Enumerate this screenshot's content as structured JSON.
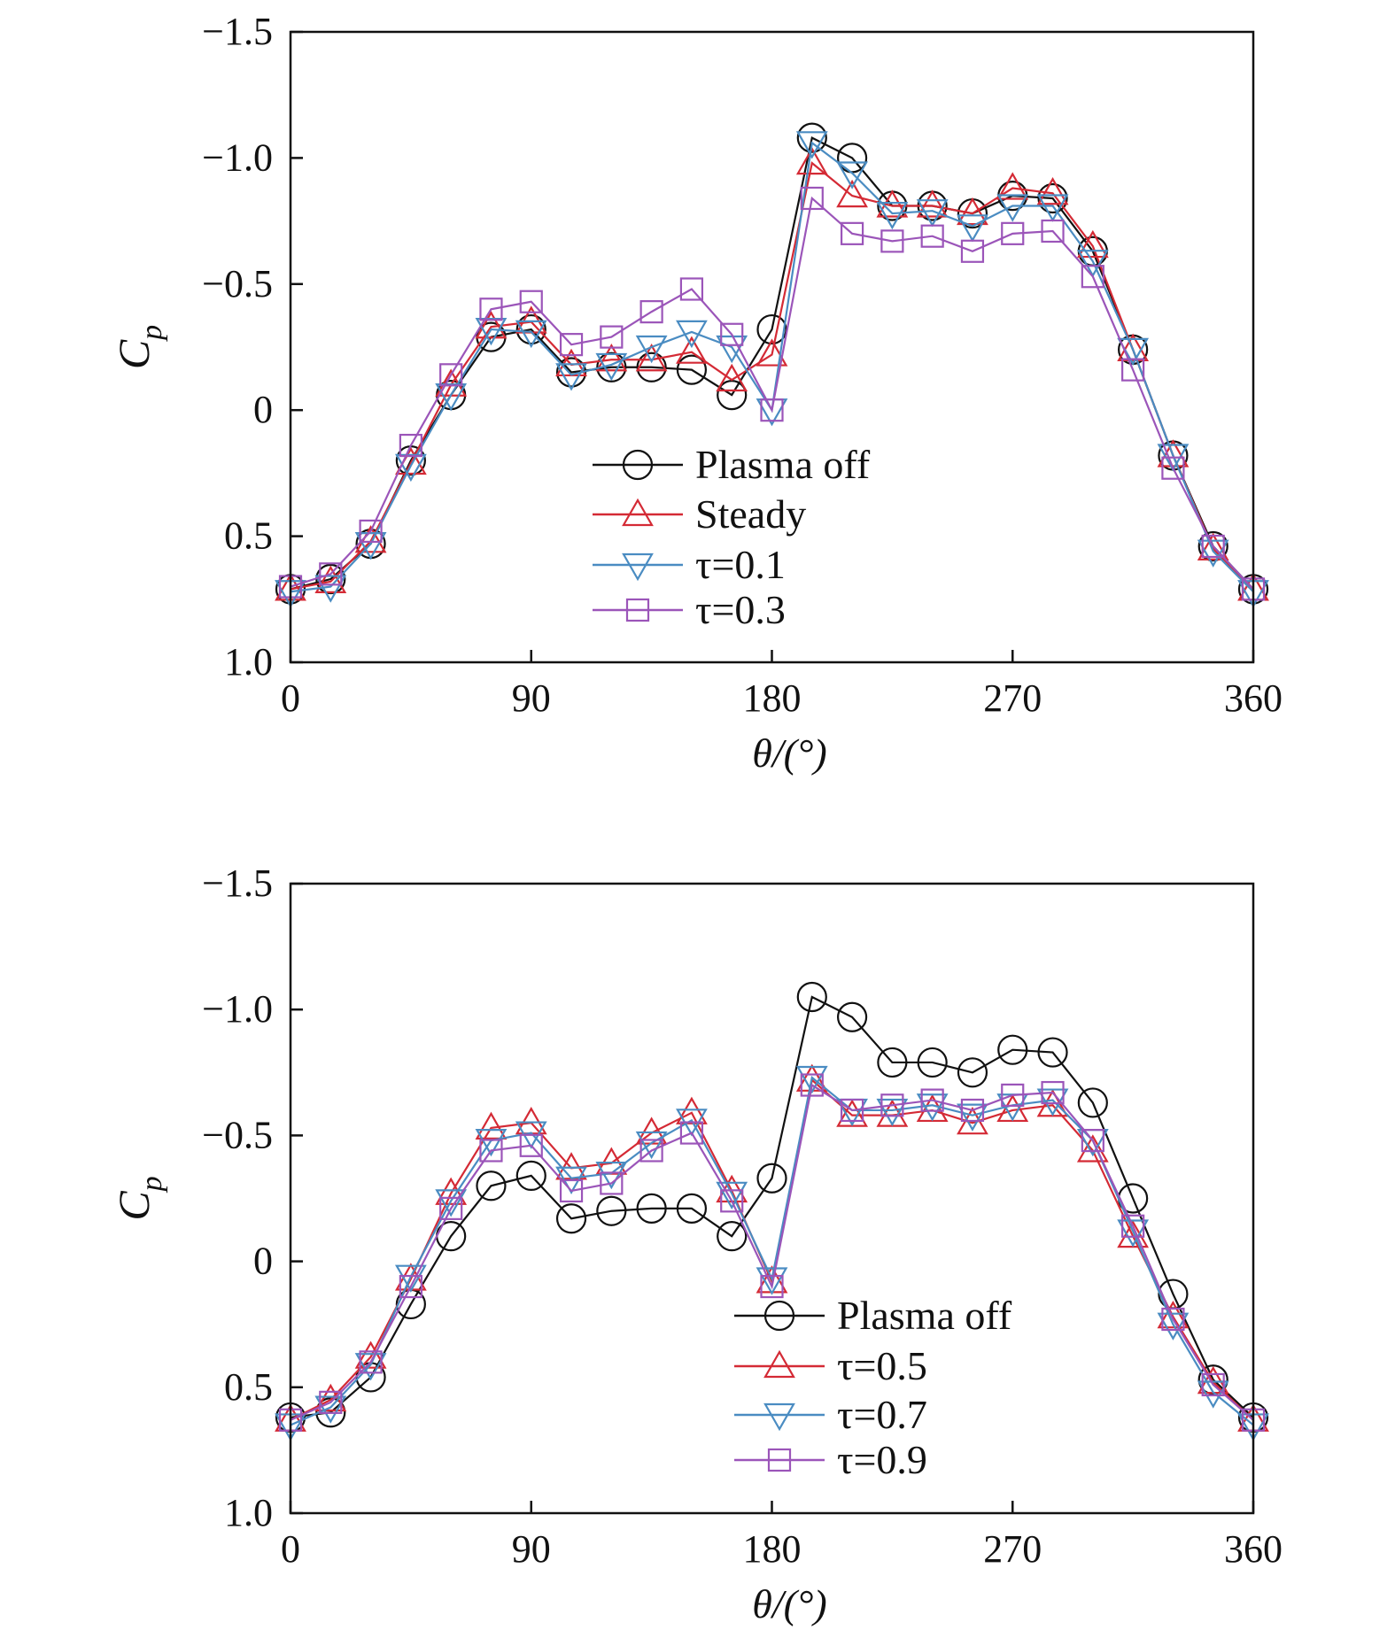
{
  "chart_data": [
    {
      "type": "line",
      "xlabel": "θ/(°)",
      "ylabel": "C_p",
      "ylabel_main": "C",
      "ylabel_sub": "p",
      "xlim": [
        0,
        360
      ],
      "ylim": [
        1.0,
        -1.5
      ],
      "y_inverted": true,
      "xticks": [
        0,
        90,
        180,
        270,
        360
      ],
      "xtick_labels": [
        "0",
        "90",
        "180",
        "270",
        "360"
      ],
      "yticks": [
        -1.5,
        -1.0,
        -0.5,
        0,
        0.5,
        1.0
      ],
      "ytick_labels": [
        "−1.5",
        "−1.0",
        "−0.5",
        "0",
        "0.5",
        "1.0"
      ],
      "grid": false,
      "legend_placement": "center",
      "x": [
        0,
        15,
        30,
        45,
        60,
        75,
        90,
        105,
        120,
        135,
        150,
        165,
        180,
        195,
        210,
        225,
        240,
        255,
        270,
        285,
        300,
        315,
        330,
        345,
        360
      ],
      "series": [
        {
          "name": "Plasma off",
          "color": "#111111",
          "marker": "circle",
          "values": [
            0.71,
            0.67,
            0.53,
            0.2,
            -0.06,
            -0.29,
            -0.32,
            -0.15,
            -0.17,
            -0.17,
            -0.16,
            -0.06,
            -0.32,
            -1.08,
            -1.0,
            -0.81,
            -0.81,
            -0.78,
            -0.85,
            -0.84,
            -0.63,
            -0.24,
            0.18,
            0.54,
            0.71
          ]
        },
        {
          "name": "Steady",
          "color": "#d42a35",
          "marker": "triangle-up",
          "values": [
            0.71,
            0.68,
            0.52,
            0.21,
            -0.1,
            -0.33,
            -0.35,
            -0.18,
            -0.2,
            -0.2,
            -0.23,
            -0.12,
            -0.22,
            -0.98,
            -0.85,
            -0.81,
            -0.81,
            -0.78,
            -0.88,
            -0.86,
            -0.65,
            -0.24,
            0.18,
            0.55,
            0.71
          ]
        },
        {
          "name": "τ=0.1",
          "color": "#4a8cc2",
          "marker": "triangle-down",
          "values": [
            0.72,
            0.7,
            0.53,
            0.22,
            -0.06,
            -0.32,
            -0.31,
            -0.14,
            -0.18,
            -0.25,
            -0.31,
            -0.25,
            0.0,
            -1.06,
            -0.94,
            -0.78,
            -0.79,
            -0.73,
            -0.81,
            -0.81,
            -0.59,
            -0.24,
            0.18,
            0.56,
            0.72
          ]
        },
        {
          "name": "τ=0.3",
          "color": "#9b55b9",
          "marker": "square",
          "values": [
            0.7,
            0.65,
            0.48,
            0.14,
            -0.14,
            -0.4,
            -0.43,
            -0.26,
            -0.29,
            -0.39,
            -0.48,
            -0.3,
            0.0,
            -0.84,
            -0.7,
            -0.67,
            -0.69,
            -0.63,
            -0.7,
            -0.71,
            -0.53,
            -0.16,
            0.23,
            0.54,
            0.71
          ]
        }
      ]
    },
    {
      "type": "line",
      "xlabel": "θ/(°)",
      "ylabel": "C_p",
      "ylabel_main": "C",
      "ylabel_sub": "p",
      "xlim": [
        0,
        360
      ],
      "ylim": [
        1.0,
        -1.5
      ],
      "y_inverted": true,
      "xticks": [
        0,
        90,
        180,
        270,
        360
      ],
      "xtick_labels": [
        "0",
        "90",
        "180",
        "270",
        "360"
      ],
      "yticks": [
        -1.5,
        -1.0,
        -0.5,
        0,
        0.5,
        1.0
      ],
      "ytick_labels": [
        "−1.5",
        "−1.0",
        "−0.5",
        "0",
        "0.5",
        "1.0"
      ],
      "grid": false,
      "legend_placement": "lower-right",
      "x": [
        0,
        15,
        30,
        45,
        60,
        75,
        90,
        105,
        120,
        135,
        150,
        165,
        180,
        195,
        210,
        225,
        240,
        255,
        270,
        285,
        300,
        315,
        330,
        345,
        360
      ],
      "series": [
        {
          "name": "Plasma off",
          "color": "#111111",
          "marker": "circle",
          "values": [
            0.62,
            0.6,
            0.46,
            0.17,
            -0.1,
            -0.3,
            -0.34,
            -0.17,
            -0.2,
            -0.21,
            -0.21,
            -0.1,
            -0.33,
            -1.05,
            -0.97,
            -0.79,
            -0.79,
            -0.75,
            -0.84,
            -0.83,
            -0.63,
            -0.25,
            0.13,
            0.47,
            0.62
          ]
        },
        {
          "name": "τ=0.5",
          "color": "#d42a35",
          "marker": "triangle-up",
          "values": [
            0.63,
            0.55,
            0.38,
            0.07,
            -0.27,
            -0.53,
            -0.55,
            -0.37,
            -0.39,
            -0.51,
            -0.59,
            -0.28,
            0.08,
            -0.72,
            -0.58,
            -0.58,
            -0.6,
            -0.55,
            -0.6,
            -0.62,
            -0.44,
            -0.1,
            0.22,
            0.48,
            0.63
          ]
        },
        {
          "name": "τ=0.7",
          "color": "#4a8cc2",
          "marker": "triangle-down",
          "values": [
            0.65,
            0.58,
            0.41,
            0.06,
            -0.24,
            -0.48,
            -0.51,
            -0.33,
            -0.35,
            -0.47,
            -0.56,
            -0.27,
            0.07,
            -0.73,
            -0.6,
            -0.6,
            -0.62,
            -0.58,
            -0.62,
            -0.64,
            -0.48,
            -0.12,
            0.25,
            0.52,
            0.65
          ]
        },
        {
          "name": "τ=0.9",
          "color": "#9b55b9",
          "marker": "square",
          "values": [
            0.63,
            0.56,
            0.4,
            0.1,
            -0.21,
            -0.44,
            -0.46,
            -0.28,
            -0.31,
            -0.44,
            -0.51,
            -0.24,
            0.1,
            -0.7,
            -0.6,
            -0.62,
            -0.64,
            -0.6,
            -0.66,
            -0.67,
            -0.48,
            -0.14,
            0.23,
            0.49,
            0.63
          ]
        }
      ]
    }
  ]
}
